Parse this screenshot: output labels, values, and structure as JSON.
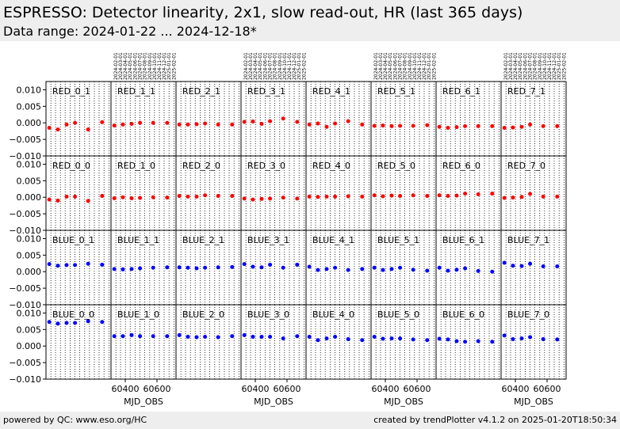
{
  "header": {
    "title": "ESPRESSO: Detector linearity, 2x1, slow read-out, HR (last 365 days)",
    "subtitle": "Data range: 2024-01-22 ... 2024-12-18*"
  },
  "footer": {
    "left": "powered by QC: www.eso.org/HC",
    "right": "created by trendPlotter v4.1.2 on 2025-01-20T18:50:34"
  },
  "chart_data": {
    "type": "scatter",
    "layout": "grid 4 rows x 8 columns",
    "xlabel": "MJD_OBS",
    "xlim": [
      60310,
      60720
    ],
    "ylim": [
      -0.01,
      0.0125
    ],
    "yticks": [
      -0.01,
      -0.005,
      0.0,
      0.005,
      0.01
    ],
    "ytick_labels": [
      "−0.010",
      "−0.005",
      "0.000",
      "0.005",
      "0.010"
    ],
    "xticks": [
      60400,
      60600
    ],
    "xtick_labels": [
      "60400",
      "60600"
    ],
    "xaxis_label_columns": [
      1,
      3,
      5,
      7
    ],
    "date_tick_columns": [
      1,
      3,
      5,
      7
    ],
    "date_ticks": [
      {
        "mjd": 60341,
        "label": "2024-02-01"
      },
      {
        "mjd": 60370,
        "label": "2024-03-01"
      },
      {
        "mjd": 60401,
        "label": "2024-04-01"
      },
      {
        "mjd": 60431,
        "label": "2024-05-01"
      },
      {
        "mjd": 60462,
        "label": "2024-06-01"
      },
      {
        "mjd": 60492,
        "label": "2024-07-01"
      },
      {
        "mjd": 60523,
        "label": "2024-08-01"
      },
      {
        "mjd": 60554,
        "label": "2024-09-01"
      },
      {
        "mjd": 60584,
        "label": "2024-10-01"
      },
      {
        "mjd": 60615,
        "label": "2024-11-01"
      },
      {
        "mjd": 60645,
        "label": "2024-12-01"
      },
      {
        "mjd": 60676,
        "label": "2025-01-01"
      },
      {
        "mjd": 60707,
        "label": "2025-02-01"
      }
    ],
    "x": [
      60331,
      60385,
      60440,
      60493,
      60576,
      60664
    ],
    "colors": {
      "red": "#ff0000",
      "blue": "#0000ff"
    },
    "panels": [
      {
        "name": "RED_0_1",
        "color": "red",
        "y": [
          -0.0015,
          -0.002,
          -0.0005,
          0.0,
          -0.002,
          0.0002
        ]
      },
      {
        "name": "RED_1_1",
        "color": "red",
        "y": [
          -0.0008,
          -0.0005,
          -0.0003,
          0.0,
          0.0,
          0.0
        ]
      },
      {
        "name": "RED_2_1",
        "color": "red",
        "y": [
          -0.0005,
          -0.0005,
          -0.0004,
          -0.0002,
          -0.0005,
          -0.0005
        ]
      },
      {
        "name": "RED_3_1",
        "color": "red",
        "y": [
          0.0003,
          0.0004,
          -0.0003,
          0.0005,
          0.0013,
          0.0003
        ]
      },
      {
        "name": "RED_4_1",
        "color": "red",
        "y": [
          -0.0005,
          -0.0002,
          -0.0012,
          -0.0002,
          0.0005,
          -0.0005
        ]
      },
      {
        "name": "RED_5_1",
        "color": "red",
        "y": [
          -0.0009,
          -0.0008,
          -0.001,
          -0.0009,
          -0.0009,
          -0.0007
        ]
      },
      {
        "name": "RED_6_1",
        "color": "red",
        "y": [
          -0.0012,
          -0.0015,
          -0.0013,
          -0.001,
          -0.001,
          -0.001
        ]
      },
      {
        "name": "RED_7_1",
        "color": "red",
        "y": [
          -0.0015,
          -0.0014,
          -0.0012,
          -0.0005,
          -0.001,
          -0.001
        ]
      },
      {
        "name": "RED_0_0",
        "color": "red",
        "y": [
          -0.0007,
          -0.001,
          0.0002,
          0.0002,
          -0.0011,
          0.0004
        ]
      },
      {
        "name": "RED_1_0",
        "color": "red",
        "y": [
          -0.0003,
          0.0,
          -0.0003,
          -0.0002,
          0.0,
          -0.0001
        ]
      },
      {
        "name": "RED_2_0",
        "color": "red",
        "y": [
          0.0004,
          0.0002,
          0.0002,
          0.0006,
          0.0004,
          0.0004
        ]
      },
      {
        "name": "RED_3_0",
        "color": "red",
        "y": [
          -0.0004,
          -0.0007,
          -0.0005,
          -0.0004,
          -0.0001,
          -0.0004
        ]
      },
      {
        "name": "RED_4_0",
        "color": "red",
        "y": [
          0.0002,
          0.0001,
          0.0002,
          0.0002,
          0.0003,
          0.0002
        ]
      },
      {
        "name": "RED_5_0",
        "color": "red",
        "y": [
          0.0006,
          0.0003,
          0.0005,
          0.0004,
          0.0006,
          0.0004
        ]
      },
      {
        "name": "RED_6_0",
        "color": "red",
        "y": [
          0.0006,
          0.0004,
          0.0005,
          0.0011,
          0.0009,
          0.0011
        ]
      },
      {
        "name": "RED_7_0",
        "color": "red",
        "y": [
          -0.0002,
          -0.0001,
          0.0001,
          0.001,
          0.0002,
          0.0002
        ]
      },
      {
        "name": "BLUE_0_1",
        "color": "blue",
        "y": [
          0.0023,
          0.0018,
          0.002,
          0.002,
          0.0024,
          0.0021
        ]
      },
      {
        "name": "BLUE_1_1",
        "color": "blue",
        "y": [
          0.0008,
          0.0007,
          0.0008,
          0.001,
          0.0012,
          0.0013
        ]
      },
      {
        "name": "BLUE_2_1",
        "color": "blue",
        "y": [
          0.0013,
          0.0012,
          0.001,
          0.0012,
          0.0013,
          0.0014
        ]
      },
      {
        "name": "BLUE_3_1",
        "color": "blue",
        "y": [
          0.0023,
          0.0015,
          0.0013,
          0.0021,
          0.0012,
          0.0021
        ]
      },
      {
        "name": "BLUE_4_1",
        "color": "blue",
        "y": [
          0.0015,
          0.0005,
          0.0008,
          0.0012,
          0.0005,
          0.0008
        ]
      },
      {
        "name": "BLUE_5_1",
        "color": "blue",
        "y": [
          0.0012,
          0.0005,
          0.0008,
          0.0012,
          0.0006,
          0.0003
        ]
      },
      {
        "name": "BLUE_6_1",
        "color": "blue",
        "y": [
          0.0012,
          0.0003,
          0.0006,
          0.001,
          0.0002,
          0.0
        ]
      },
      {
        "name": "BLUE_7_1",
        "color": "blue",
        "y": [
          0.0027,
          0.0018,
          0.0017,
          0.0024,
          0.0016,
          0.0016
        ]
      },
      {
        "name": "BLUE_0_0",
        "color": "blue",
        "y": [
          0.0073,
          0.0068,
          0.007,
          0.007,
          0.0075,
          0.0073
        ]
      },
      {
        "name": "BLUE_1_0",
        "color": "blue",
        "y": [
          0.003,
          0.003,
          0.0033,
          0.003,
          0.003,
          0.003
        ]
      },
      {
        "name": "BLUE_2_0",
        "color": "blue",
        "y": [
          0.0033,
          0.0028,
          0.0027,
          0.0028,
          0.0027,
          0.003
        ]
      },
      {
        "name": "BLUE_3_0",
        "color": "blue",
        "y": [
          0.0033,
          0.0028,
          0.0028,
          0.0028,
          0.0023,
          0.003
        ]
      },
      {
        "name": "BLUE_4_0",
        "color": "blue",
        "y": [
          0.0028,
          0.0018,
          0.0023,
          0.0028,
          0.0021,
          0.0018
        ]
      },
      {
        "name": "BLUE_5_0",
        "color": "blue",
        "y": [
          0.0028,
          0.0022,
          0.0023,
          0.0023,
          0.002,
          0.0018
        ]
      },
      {
        "name": "BLUE_6_0",
        "color": "blue",
        "y": [
          0.0022,
          0.002,
          0.0015,
          0.0013,
          0.0015,
          0.0013
        ]
      },
      {
        "name": "BLUE_7_0",
        "color": "blue",
        "y": [
          0.0032,
          0.0021,
          0.0023,
          0.0027,
          0.0021,
          0.002
        ]
      }
    ]
  }
}
